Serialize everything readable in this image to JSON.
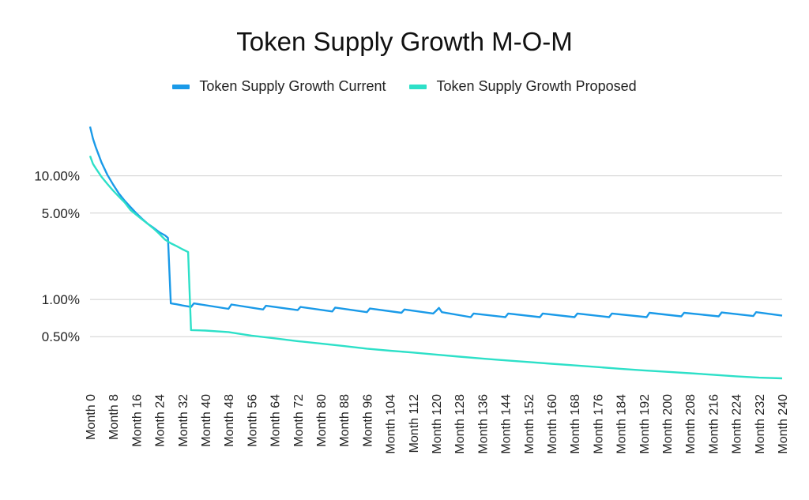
{
  "chart_data": {
    "type": "line",
    "title": "Token Supply Growth M-O-M",
    "xlabel": "",
    "ylabel": "",
    "y_scale": "log",
    "y_unit": "percent",
    "ylim": [
      0.19,
      30
    ],
    "y_ticks": [
      {
        "value": 10,
        "label": "10.00%"
      },
      {
        "value": 5,
        "label": "5.00%"
      },
      {
        "value": 1,
        "label": "1.00%"
      },
      {
        "value": 0.5,
        "label": "0.50%"
      }
    ],
    "grid": true,
    "legend": "top",
    "x_ticks": [
      0,
      8,
      16,
      24,
      32,
      40,
      48,
      56,
      64,
      72,
      80,
      88,
      96,
      104,
      112,
      120,
      128,
      136,
      144,
      152,
      160,
      168,
      176,
      184,
      192,
      200,
      208,
      216,
      224,
      232,
      240
    ],
    "x_tick_prefix": "Month ",
    "xlim": [
      0,
      240
    ],
    "series": [
      {
        "name": "Token Supply Growth Current",
        "color": "#1a9ae8",
        "points": [
          [
            0,
            25
          ],
          [
            1,
            20
          ],
          [
            2,
            17
          ],
          [
            4,
            12.8
          ],
          [
            6,
            10.2
          ],
          [
            8,
            8.5
          ],
          [
            10,
            7.2
          ],
          [
            12,
            6.3
          ],
          [
            14,
            5.6
          ],
          [
            16,
            5.0
          ],
          [
            18,
            4.5
          ],
          [
            20,
            4.1
          ],
          [
            22,
            3.8
          ],
          [
            24,
            3.5
          ],
          [
            26,
            3.3
          ],
          [
            27,
            3.15
          ],
          [
            28,
            0.93
          ],
          [
            30,
            0.915
          ],
          [
            32,
            0.895
          ],
          [
            35,
            0.87
          ],
          [
            36,
            0.93
          ],
          [
            48,
            0.84
          ],
          [
            49,
            0.91
          ],
          [
            60,
            0.83
          ],
          [
            61,
            0.89
          ],
          [
            72,
            0.82
          ],
          [
            73,
            0.87
          ],
          [
            84,
            0.8
          ],
          [
            85,
            0.86
          ],
          [
            96,
            0.79
          ],
          [
            97,
            0.845
          ],
          [
            108,
            0.78
          ],
          [
            109,
            0.83
          ],
          [
            119,
            0.77
          ],
          [
            120,
            0.81
          ],
          [
            121,
            0.855
          ],
          [
            122,
            0.79
          ],
          [
            132,
            0.72
          ],
          [
            133,
            0.77
          ],
          [
            144,
            0.72
          ],
          [
            145,
            0.77
          ],
          [
            156,
            0.72
          ],
          [
            157,
            0.77
          ],
          [
            168,
            0.72
          ],
          [
            169,
            0.77
          ],
          [
            180,
            0.72
          ],
          [
            181,
            0.77
          ],
          [
            193,
            0.72
          ],
          [
            194,
            0.78
          ],
          [
            205,
            0.73
          ],
          [
            206,
            0.78
          ],
          [
            218,
            0.73
          ],
          [
            219,
            0.785
          ],
          [
            230,
            0.735
          ],
          [
            231,
            0.79
          ],
          [
            240,
            0.74
          ]
        ]
      },
      {
        "name": "Token Supply Growth Proposed",
        "color": "#2de0c8",
        "points": [
          [
            0,
            14.5
          ],
          [
            1,
            12.5
          ],
          [
            2,
            11.5
          ],
          [
            4,
            9.8
          ],
          [
            6,
            8.6
          ],
          [
            8,
            7.6
          ],
          [
            10,
            6.8
          ],
          [
            12,
            6.1
          ],
          [
            14,
            5.3
          ],
          [
            16,
            4.85
          ],
          [
            18,
            4.45
          ],
          [
            20,
            4.1
          ],
          [
            22,
            3.75
          ],
          [
            24,
            3.4
          ],
          [
            26,
            3.05
          ],
          [
            28,
            2.85
          ],
          [
            30,
            2.7
          ],
          [
            32,
            2.55
          ],
          [
            34,
            2.42
          ],
          [
            35,
            0.565
          ],
          [
            40,
            0.56
          ],
          [
            48,
            0.545
          ],
          [
            56,
            0.51
          ],
          [
            64,
            0.485
          ],
          [
            72,
            0.46
          ],
          [
            80,
            0.44
          ],
          [
            88,
            0.42
          ],
          [
            96,
            0.4
          ],
          [
            104,
            0.385
          ],
          [
            112,
            0.372
          ],
          [
            120,
            0.358
          ],
          [
            128,
            0.345
          ],
          [
            136,
            0.333
          ],
          [
            144,
            0.322
          ],
          [
            152,
            0.312
          ],
          [
            160,
            0.302
          ],
          [
            168,
            0.293
          ],
          [
            176,
            0.284
          ],
          [
            184,
            0.275
          ],
          [
            192,
            0.267
          ],
          [
            200,
            0.26
          ],
          [
            208,
            0.253
          ],
          [
            216,
            0.246
          ],
          [
            224,
            0.239
          ],
          [
            232,
            0.233
          ],
          [
            240,
            0.23
          ]
        ]
      }
    ]
  }
}
